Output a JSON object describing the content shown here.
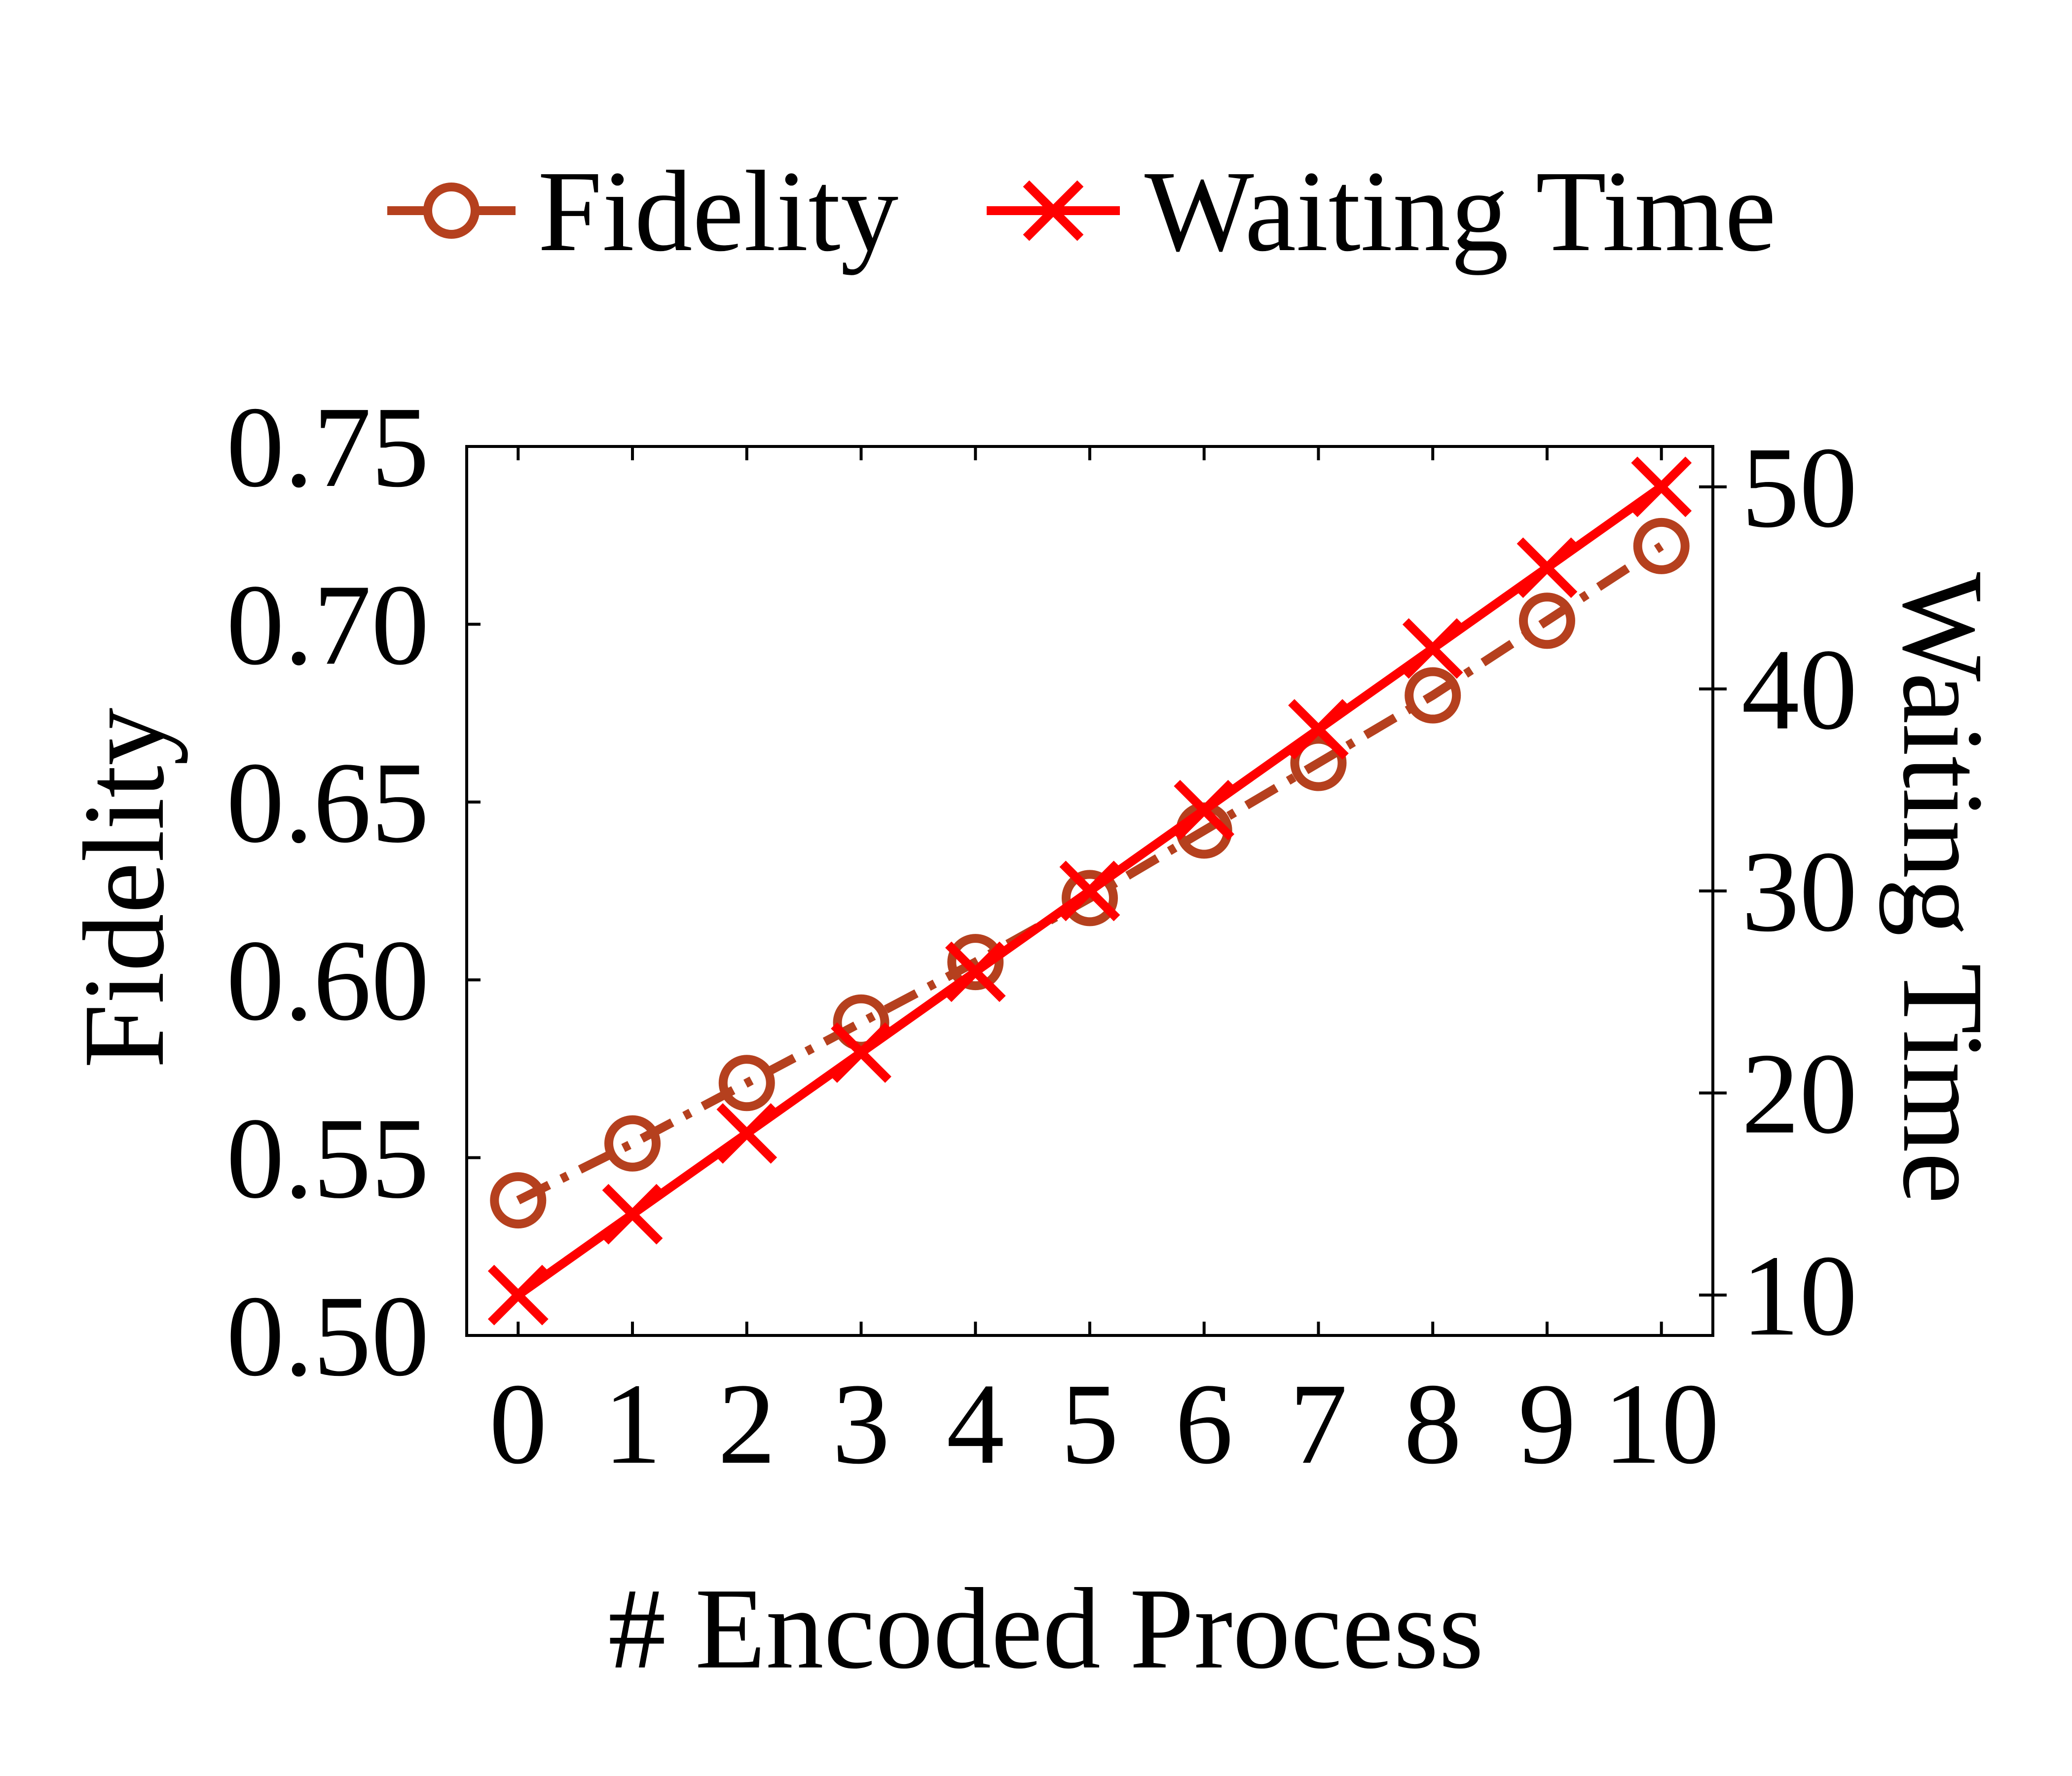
{
  "chart_data": {
    "type": "line",
    "title": "",
    "xlabel": "# Encoded Process",
    "ylabel": "Fidelity",
    "y2label": "Waiting Time",
    "categories": [
      "0",
      "1",
      "2",
      "3",
      "4",
      "5",
      "6",
      "7",
      "8",
      "9",
      "10"
    ],
    "x": [
      0,
      1,
      2,
      3,
      4,
      5,
      6,
      7,
      8,
      9,
      10
    ],
    "ylim": [
      0.5,
      0.75
    ],
    "y2lim": [
      8,
      52
    ],
    "yticks": [
      "0.50",
      "0.55",
      "0.60",
      "0.65",
      "0.70",
      "0.75"
    ],
    "y2ticks": [
      "10",
      "20",
      "30",
      "40",
      "50"
    ],
    "grid": false,
    "legend_position": "top-center",
    "series": [
      {
        "name": "Fidelity",
        "axis": "left",
        "color": "#b5401e",
        "marker": "circle",
        "line_style": "dash-dot",
        "values": [
          0.538,
          0.554,
          0.571,
          0.588,
          0.605,
          0.623,
          0.642,
          0.661,
          0.68,
          0.701,
          0.722
        ]
      },
      {
        "name": "Waiting Time",
        "axis": "right",
        "color": "#ff0000",
        "marker": "x",
        "line_style": "solid",
        "values": [
          10,
          14,
          18,
          22,
          26,
          30,
          34,
          38,
          42,
          46,
          50
        ]
      }
    ]
  }
}
